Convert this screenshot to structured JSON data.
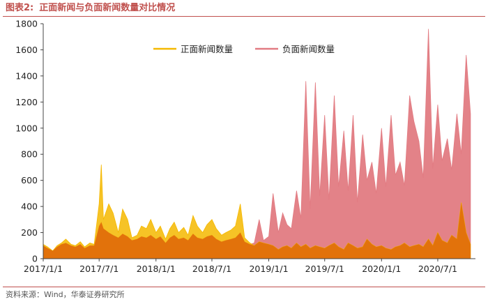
{
  "figure": {
    "label": "图表2:",
    "title": "正面新闻与负面新闻数量对比情况",
    "source": "资料来源：Wind，华泰证券研究所"
  },
  "colors": {
    "positive": "#f5b800",
    "negative": "#e27b82",
    "overlap": "#e06c0a",
    "accent": "#c0504d"
  },
  "chart_data": {
    "type": "area",
    "title": "",
    "xlabel": "",
    "ylabel": "",
    "ylim": [
      0,
      1800
    ],
    "yticks": [
      0,
      200,
      400,
      600,
      800,
      1000,
      1200,
      1400,
      1600,
      1800
    ],
    "xlim": [
      "2017-01-01",
      "2020-10-31"
    ],
    "xticks": [
      "2017/1/1",
      "2017/7/1",
      "2018/1/1",
      "2018/7/1",
      "2019/1/1",
      "2019/7/1",
      "2020/1/1",
      "2020/7/1"
    ],
    "grid": false,
    "legend_position": "top",
    "x": [
      "2017-01-01",
      "2017-01-15",
      "2017-02-01",
      "2017-02-15",
      "2017-03-01",
      "2017-03-15",
      "2017-04-01",
      "2017-04-15",
      "2017-05-01",
      "2017-05-15",
      "2017-06-01",
      "2017-06-15",
      "2017-07-01",
      "2017-07-08",
      "2017-07-15",
      "2017-08-01",
      "2017-08-15",
      "2017-09-01",
      "2017-09-15",
      "2017-10-01",
      "2017-10-15",
      "2017-11-01",
      "2017-11-15",
      "2017-12-01",
      "2017-12-15",
      "2018-01-01",
      "2018-01-15",
      "2018-02-01",
      "2018-02-15",
      "2018-03-01",
      "2018-03-15",
      "2018-04-01",
      "2018-04-15",
      "2018-05-01",
      "2018-05-15",
      "2018-06-01",
      "2018-06-15",
      "2018-07-01",
      "2018-07-15",
      "2018-08-01",
      "2018-08-15",
      "2018-09-01",
      "2018-09-15",
      "2018-10-01",
      "2018-10-15",
      "2018-11-01",
      "2018-11-15",
      "2018-12-01",
      "2018-12-15",
      "2019-01-01",
      "2019-01-15",
      "2019-02-01",
      "2019-02-15",
      "2019-03-01",
      "2019-03-15",
      "2019-04-01",
      "2019-04-15",
      "2019-05-01",
      "2019-05-15",
      "2019-06-01",
      "2019-06-15",
      "2019-07-01",
      "2019-07-15",
      "2019-08-01",
      "2019-08-15",
      "2019-09-01",
      "2019-09-15",
      "2019-10-01",
      "2019-10-15",
      "2019-11-01",
      "2019-11-15",
      "2019-12-01",
      "2019-12-15",
      "2020-01-01",
      "2020-01-15",
      "2020-02-01",
      "2020-02-15",
      "2020-03-01",
      "2020-03-15",
      "2020-04-01",
      "2020-04-15",
      "2020-05-01",
      "2020-05-15",
      "2020-06-01",
      "2020-06-15",
      "2020-07-01",
      "2020-07-15",
      "2020-08-01",
      "2020-08-15",
      "2020-09-01",
      "2020-09-15",
      "2020-10-01",
      "2020-10-15"
    ],
    "series": [
      {
        "name": "正面新闻数量",
        "values": [
          110,
          90,
          60,
          100,
          120,
          150,
          110,
          100,
          130,
          90,
          120,
          110,
          420,
          720,
          300,
          420,
          350,
          200,
          380,
          300,
          160,
          180,
          250,
          230,
          300,
          200,
          250,
          150,
          230,
          280,
          200,
          240,
          180,
          330,
          250,
          200,
          260,
          300,
          230,
          180,
          200,
          220,
          250,
          420,
          160,
          120,
          100,
          130,
          120,
          110,
          100,
          70,
          90,
          100,
          80,
          120,
          90,
          110,
          80,
          100,
          90,
          80,
          100,
          120,
          90,
          70,
          120,
          100,
          80,
          90,
          150,
          110,
          90,
          100,
          80,
          70,
          90,
          100,
          120,
          90,
          100,
          110,
          90,
          150,
          100,
          200,
          140,
          120,
          180,
          150,
          430,
          200,
          110
        ]
      },
      {
        "name": "负面新闻数量",
        "values": [
          100,
          80,
          60,
          90,
          110,
          120,
          100,
          90,
          110,
          80,
          100,
          100,
          250,
          280,
          230,
          200,
          180,
          160,
          190,
          170,
          140,
          150,
          170,
          160,
          180,
          150,
          170,
          120,
          160,
          180,
          150,
          160,
          140,
          190,
          160,
          150,
          170,
          180,
          150,
          130,
          140,
          150,
          160,
          200,
          130,
          110,
          120,
          300,
          140,
          170,
          500,
          200,
          350,
          260,
          230,
          520,
          310,
          1360,
          380,
          1350,
          480,
          1100,
          450,
          1250,
          550,
          980,
          520,
          1100,
          430,
          950,
          600,
          740,
          500,
          1000,
          550,
          1100,
          640,
          740,
          560,
          1250,
          1050,
          900,
          620,
          1760,
          690,
          1180,
          750,
          920,
          680,
          1110,
          800,
          1560,
          1110
        ]
      }
    ]
  }
}
